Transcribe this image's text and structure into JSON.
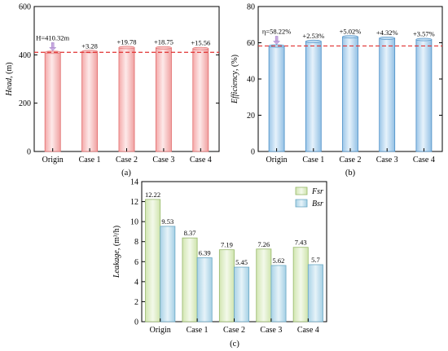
{
  "chart_data": [
    {
      "panel": "(a)",
      "type": "bar",
      "ylabel_main": "Head",
      "ylabel_unit": ", (m)",
      "categories": [
        "Origin",
        "Case 1",
        "Case 2",
        "Case 3",
        "Case 4"
      ],
      "values": [
        410.32,
        413.6,
        430.1,
        429.07,
        425.88
      ],
      "labels": [
        "H=410.32m",
        "+3.28",
        "+19.78",
        "+18.75",
        "+15.56"
      ],
      "reference_line": 410.32,
      "ylim": [
        0,
        600
      ],
      "yticks": [
        "0",
        "200",
        "400",
        "600"
      ],
      "colors": {
        "fill": "#f7c3c3",
        "edge": "#e26b6b",
        "ref": "#e03030",
        "marker": "#c9a9e0"
      }
    },
    {
      "panel": "(b)",
      "type": "bar",
      "ylabel_main": "Efficiency",
      "ylabel_unit": ", (%)",
      "categories": [
        "Origin",
        "Case 1",
        "Case 2",
        "Case 3",
        "Case 4"
      ],
      "values": [
        58.22,
        60.75,
        63.24,
        62.54,
        61.79
      ],
      "labels": [
        "η=58.22%",
        "+2.53%",
        "+5.02%",
        "+4.32%",
        "+3.57%"
      ],
      "reference_line": 58.22,
      "ylim": [
        0,
        80
      ],
      "yticks": [
        "0",
        "20",
        "40",
        "60",
        "80"
      ],
      "colors": {
        "fill": "#bcd9ef",
        "edge": "#4a8ec6",
        "ref": "#e03030",
        "marker": "#c9a9e0"
      }
    },
    {
      "panel": "(c)",
      "type": "bar",
      "ylabel_main": "Leakage",
      "ylabel_unit": ", (m³/h)",
      "categories": [
        "Origin",
        "Case 1",
        "Case 2",
        "Case 3",
        "Case 4"
      ],
      "series": [
        {
          "name": "Fsr",
          "values": [
            12.22,
            8.37,
            7.19,
            7.26,
            7.43
          ],
          "fill": "#e3efcc",
          "edge": "#96b86a"
        },
        {
          "name": "Bsr",
          "values": [
            9.53,
            6.39,
            5.45,
            5.62,
            5.7
          ],
          "fill": "#c8e2ee",
          "edge": "#6aa8c4"
        }
      ],
      "ylim": [
        0,
        14
      ],
      "yticks": [
        "0",
        "2",
        "4",
        "6",
        "8",
        "10",
        "12",
        "14"
      ],
      "legend_position": "top-right"
    }
  ]
}
